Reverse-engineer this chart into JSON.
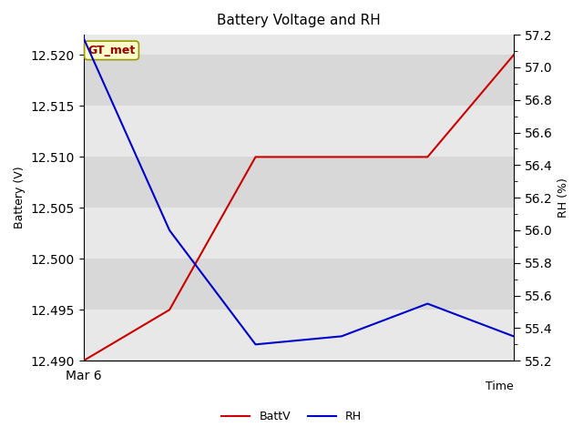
{
  "title": "Battery Voltage and RH",
  "xlabel": "Time",
  "ylabel_left": "Battery (V)",
  "ylabel_right": "RH (%)",
  "annotation": "GT_met",
  "x_values": [
    0,
    1,
    2,
    3,
    4,
    5
  ],
  "batt_values": [
    12.49,
    12.495,
    12.51,
    12.51,
    12.51,
    12.52
  ],
  "rh_values": [
    57.18,
    56.0,
    55.3,
    55.35,
    55.55,
    55.35
  ],
  "batt_color": "#cc0000",
  "rh_color": "#0000cc",
  "ylim_left": [
    12.49,
    12.522
  ],
  "ylim_right": [
    55.2,
    57.2
  ],
  "band_colors": [
    "#e8e8e8",
    "#d8d8d8"
  ],
  "fig_bg_color": "#ffffff",
  "title_fontsize": 11,
  "axis_label_fontsize": 9,
  "legend_fontsize": 9,
  "annotation_bbox_facecolor": "#ffffcc",
  "annotation_bbox_edgecolor": "#999900",
  "annotation_color": "#990000",
  "line_width": 1.5,
  "yticks_left": [
    12.49,
    12.495,
    12.5,
    12.505,
    12.51,
    12.515,
    12.52
  ],
  "yticks_right": [
    55.2,
    55.4,
    55.6,
    55.8,
    56.0,
    56.2,
    56.4,
    56.6,
    56.8,
    57.0,
    57.2
  ]
}
